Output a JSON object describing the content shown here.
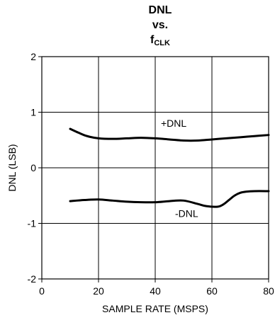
{
  "chart_data": {
    "type": "line",
    "title_line1": "DNL",
    "title_line2": "vs.",
    "title_line3_main": "f",
    "title_line3_sub": "CLK",
    "xlabel": "SAMPLE RATE (MSPS)",
    "ylabel": "DNL (LSB)",
    "xlim": [
      0,
      80
    ],
    "ylim": [
      -2,
      2
    ],
    "xticks": [
      "0",
      "20",
      "40",
      "60",
      "80"
    ],
    "yticks": [
      "2",
      "1",
      "0",
      "-1",
      "-2"
    ],
    "grid": true,
    "series": [
      {
        "name": "+DNL",
        "color": "#000000",
        "x": [
          10,
          13,
          16,
          20,
          25,
          30,
          35,
          40,
          45,
          50,
          55,
          60,
          65,
          70,
          75,
          80
        ],
        "y": [
          0.7,
          0.63,
          0.57,
          0.53,
          0.52,
          0.53,
          0.54,
          0.53,
          0.51,
          0.49,
          0.49,
          0.51,
          0.53,
          0.55,
          0.57,
          0.59
        ]
      },
      {
        "name": "-DNL",
        "color": "#000000",
        "x": [
          10,
          15,
          20,
          25,
          30,
          35,
          40,
          45,
          50,
          55,
          58,
          62,
          64,
          66,
          68,
          70,
          72,
          75,
          80
        ],
        "y": [
          -0.6,
          -0.58,
          -0.57,
          -0.59,
          -0.61,
          -0.62,
          -0.62,
          -0.6,
          -0.59,
          -0.65,
          -0.69,
          -0.7,
          -0.66,
          -0.58,
          -0.5,
          -0.45,
          -0.43,
          -0.42,
          -0.42
        ]
      }
    ]
  }
}
